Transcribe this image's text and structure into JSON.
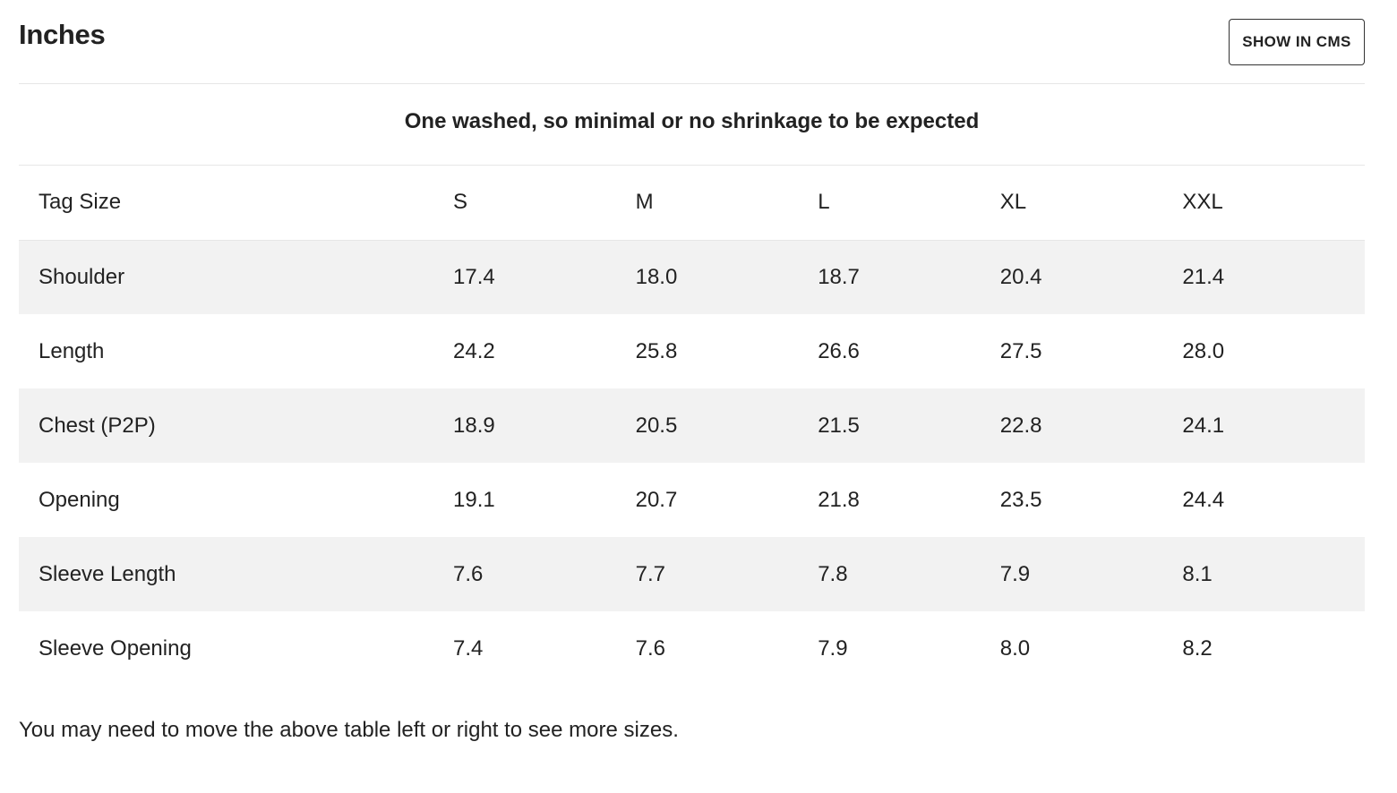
{
  "header": {
    "title": "Inches",
    "cms_button_label": "SHOW IN CMS"
  },
  "note": "One washed, so minimal or no shrinkage to be expected",
  "table": {
    "columns": [
      "Tag Size",
      "S",
      "M",
      "L",
      "XL",
      "XXL"
    ],
    "rows": [
      [
        "Shoulder",
        "17.4",
        "18.0",
        "18.7",
        "20.4",
        "21.4"
      ],
      [
        "Length",
        "24.2",
        "25.8",
        "26.6",
        "27.5",
        "28.0"
      ],
      [
        "Chest (P2P)",
        "18.9",
        "20.5",
        "21.5",
        "22.8",
        "24.1"
      ],
      [
        "Opening",
        "19.1",
        "20.7",
        "21.8",
        "23.5",
        "24.4"
      ],
      [
        "Sleeve Length",
        "7.6",
        "7.7",
        "7.8",
        "7.9",
        "8.1"
      ],
      [
        "Sleeve Opening",
        "7.4",
        "7.6",
        "7.9",
        "8.0",
        "8.2"
      ]
    ]
  },
  "footer_hint": "You may need to move the above table left or right to see more sizes.",
  "colors": {
    "text": "#222222",
    "stripe": "#f2f2f2",
    "divider": "#e6e6e6",
    "button_border": "#333333"
  }
}
